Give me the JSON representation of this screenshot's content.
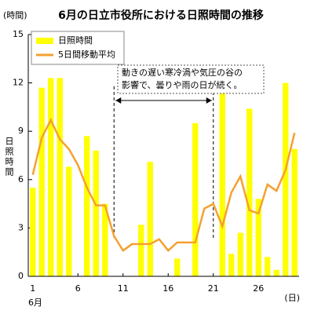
{
  "chart_data": {
    "type": "bar_line",
    "title": "6月の日立市役所における日照時間の推移",
    "y_unit": "(時間)",
    "x_unit": "(日)",
    "month_label": "6月",
    "ylabel": "日照時間",
    "x": [
      1,
      2,
      3,
      4,
      5,
      6,
      7,
      8,
      9,
      10,
      11,
      12,
      13,
      14,
      15,
      16,
      17,
      18,
      19,
      20,
      21,
      22,
      23,
      24,
      25,
      26,
      27,
      28,
      29,
      30
    ],
    "xlim": [
      0.5,
      30.5
    ],
    "xticks": [
      1,
      6,
      11,
      16,
      21,
      26
    ],
    "ylim": [
      0,
      15
    ],
    "yticks": [
      0,
      3,
      6,
      9,
      12,
      15
    ],
    "legend": "top-left",
    "series": [
      {
        "name": "日照時間",
        "type": "bar",
        "color": "#ffff00",
        "values": [
          5.5,
          11.7,
          12.3,
          12.3,
          6.8,
          0,
          8.7,
          7.8,
          4.5,
          0,
          0,
          0,
          3.2,
          7.1,
          0,
          0,
          1.1,
          0,
          9.5,
          0,
          0,
          11.5,
          1.4,
          2.7,
          10.4,
          4.8,
          1.2,
          0.4,
          12.0,
          7.9
        ]
      },
      {
        "name": "5日間移動平均",
        "type": "line",
        "color": "#f5a030",
        "values": [
          6.3,
          8.6,
          9.7,
          8.5,
          7.9,
          6.9,
          5.5,
          4.4,
          4.4,
          2.5,
          1.6,
          2.0,
          2.0,
          2.0,
          2.3,
          1.6,
          2.1,
          2.1,
          2.1,
          4.2,
          4.5,
          3.1,
          5.2,
          6.2,
          4.1,
          3.9,
          5.7,
          5.3,
          6.6,
          8.9
        ]
      }
    ],
    "annotation": {
      "lines": [
        "動きの遅い寒冷渦や気圧の谷の",
        "影響で、曇りや雨の日が続く。"
      ],
      "from": 10,
      "to": 21
    }
  }
}
